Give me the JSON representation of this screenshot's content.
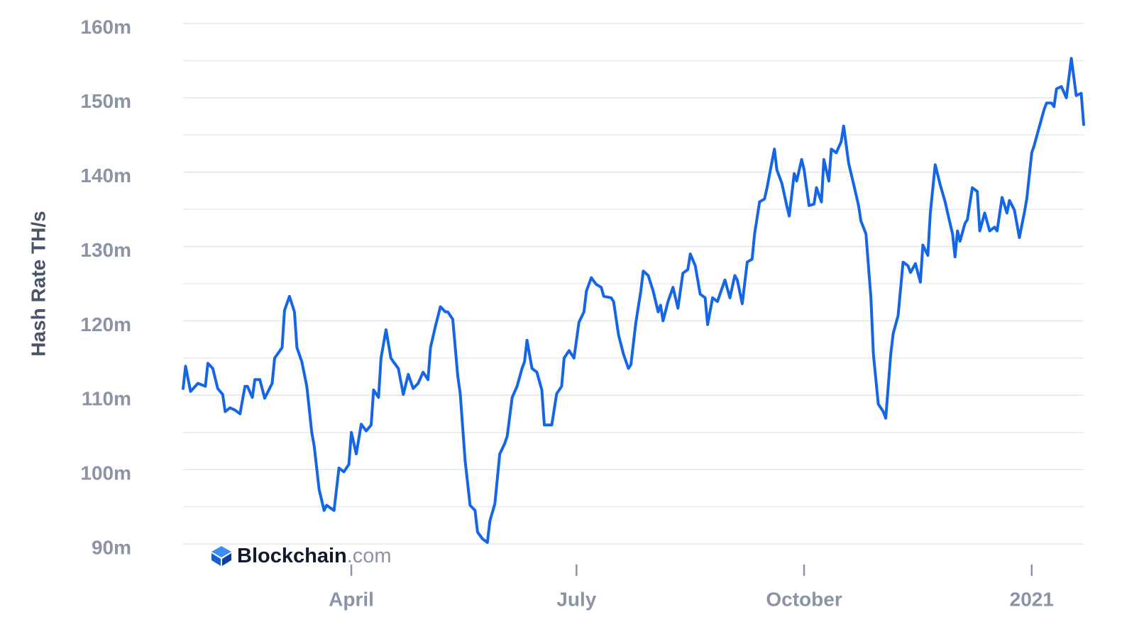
{
  "chart_data": {
    "type": "line",
    "y_label": "Hash Rate TH/s",
    "color": "#1466e6",
    "grid": true,
    "xlim": [
      0,
      364
    ],
    "xticks": [
      {
        "value": 68,
        "label": "April"
      },
      {
        "value": 159,
        "label": "July"
      },
      {
        "value": 251,
        "label": "October"
      },
      {
        "value": 343,
        "label": "2021"
      }
    ],
    "ylim": [
      90,
      160
    ],
    "yticks": [
      {
        "value": 90,
        "label": "90m"
      },
      {
        "value": 100,
        "label": "100m"
      },
      {
        "value": 110,
        "label": "110m"
      },
      {
        "value": 120,
        "label": "120m"
      },
      {
        "value": 130,
        "label": "130m"
      },
      {
        "value": 140,
        "label": "140m"
      },
      {
        "value": 150,
        "label": "150m"
      },
      {
        "value": 160,
        "label": "160m"
      }
    ],
    "minor_gridlines": [
      95,
      105,
      115,
      125,
      135,
      145,
      155
    ],
    "watermark": {
      "brand": "Blockchain",
      "domain": ".com"
    },
    "x": [
      0,
      1,
      3,
      6,
      9,
      10,
      12,
      14,
      16,
      17,
      19,
      21,
      23,
      25,
      26,
      28,
      29,
      31,
      33,
      36,
      37,
      40,
      41,
      43,
      45,
      46,
      48,
      50,
      52,
      53,
      55,
      57,
      58,
      61,
      63,
      65,
      67,
      68,
      70,
      72,
      74,
      76,
      77,
      79,
      80,
      82,
      84,
      85,
      87,
      89,
      91,
      93,
      95,
      97,
      99,
      100,
      102,
      104,
      106,
      107,
      109,
      111,
      112,
      114,
      116,
      118,
      119,
      121,
      123,
      124,
      126,
      128,
      130,
      131,
      133,
      135,
      137,
      138,
      139,
      141,
      143,
      145,
      146,
      149,
      151,
      153,
      154,
      156,
      158,
      160,
      162,
      163,
      165,
      167,
      169,
      170,
      173,
      174,
      176,
      178,
      180,
      181,
      183,
      185,
      186,
      188,
      190,
      192,
      193,
      194,
      196,
      198,
      200,
      202,
      204,
      205,
      207,
      209,
      211,
      212,
      214,
      216,
      217,
      219,
      221,
      223,
      224,
      226,
      228,
      230,
      231,
      233,
      235,
      236,
      239,
      240,
      242,
      244,
      245,
      247,
      248,
      250,
      251,
      253,
      255,
      256,
      258,
      259,
      261,
      262,
      264,
      266,
      267,
      269,
      271,
      273,
      274,
      276,
      278,
      279,
      281,
      283,
      284,
      286,
      287,
      289,
      291,
      293,
      294,
      296,
      298,
      299,
      301,
      302,
      304,
      306,
      308,
      309,
      311,
      312,
      313,
      314,
      316,
      317,
      319,
      321,
      322,
      324,
      326,
      328,
      329,
      331,
      333,
      334,
      336,
      338,
      340,
      341,
      343,
      344,
      346,
      348,
      349,
      351,
      352,
      353,
      355,
      357,
      359,
      361,
      363,
      364
    ],
    "values": [
      110.9,
      113.9,
      110.5,
      111.6,
      111.2,
      114.3,
      113.6,
      110.9,
      110.1,
      107.8,
      108.3,
      108.0,
      107.5,
      111.2,
      111.2,
      109.7,
      112.1,
      112.1,
      109.6,
      111.6,
      115.0,
      116.4,
      121.4,
      123.3,
      121.2,
      116.4,
      114.5,
      111.2,
      105.0,
      103.1,
      97.3,
      94.5,
      95.2,
      94.5,
      100.2,
      99.7,
      100.7,
      105.0,
      102.1,
      106.1,
      105.2,
      106.0,
      110.7,
      109.7,
      115.0,
      118.8,
      115.0,
      114.5,
      113.6,
      110.1,
      112.8,
      110.9,
      111.6,
      113.1,
      112.1,
      116.4,
      119.3,
      121.9,
      121.2,
      121.2,
      120.2,
      112.6,
      110.2,
      101.2,
      95.2,
      94.5,
      91.6,
      90.7,
      90.2,
      93.1,
      95.4,
      102.1,
      103.5,
      104.5,
      109.7,
      111.2,
      113.6,
      114.5,
      117.4,
      113.6,
      113.1,
      110.7,
      106.0,
      106.0,
      110.2,
      111.2,
      115.0,
      116.0,
      115.0,
      119.8,
      121.2,
      124.0,
      125.8,
      124.9,
      124.5,
      123.3,
      123.1,
      122.6,
      118.1,
      115.5,
      113.6,
      114.1,
      119.8,
      124.0,
      126.7,
      126.1,
      124.0,
      121.2,
      122.1,
      120.0,
      122.6,
      124.5,
      121.7,
      126.4,
      126.9,
      129.0,
      127.4,
      123.6,
      123.1,
      119.5,
      123.1,
      122.6,
      123.6,
      125.5,
      123.1,
      126.1,
      125.5,
      122.3,
      127.9,
      128.3,
      131.7,
      136.0,
      136.4,
      137.9,
      143.1,
      140.3,
      138.5,
      135.5,
      134.1,
      139.8,
      138.8,
      141.7,
      140.3,
      135.5,
      135.7,
      137.9,
      136.0,
      141.7,
      138.8,
      143.1,
      142.6,
      144.1,
      146.2,
      141.2,
      138.4,
      135.5,
      133.4,
      131.7,
      123.1,
      115.5,
      108.8,
      107.8,
      106.9,
      115.5,
      118.3,
      120.7,
      127.9,
      127.4,
      126.5,
      127.7,
      125.2,
      130.2,
      128.8,
      134.5,
      141.0,
      138.3,
      136.0,
      134.5,
      131.7,
      128.6,
      132.1,
      130.7,
      133.1,
      133.6,
      137.9,
      137.4,
      132.1,
      134.5,
      132.1,
      132.6,
      132.1,
      136.6,
      134.5,
      136.2,
      134.9,
      131.2,
      134.5,
      136.4,
      142.6,
      143.6,
      146.0,
      148.4,
      149.3,
      149.3,
      148.8,
      151.2,
      151.5,
      150.0,
      155.3,
      150.3,
      150.6,
      146.4
    ]
  }
}
